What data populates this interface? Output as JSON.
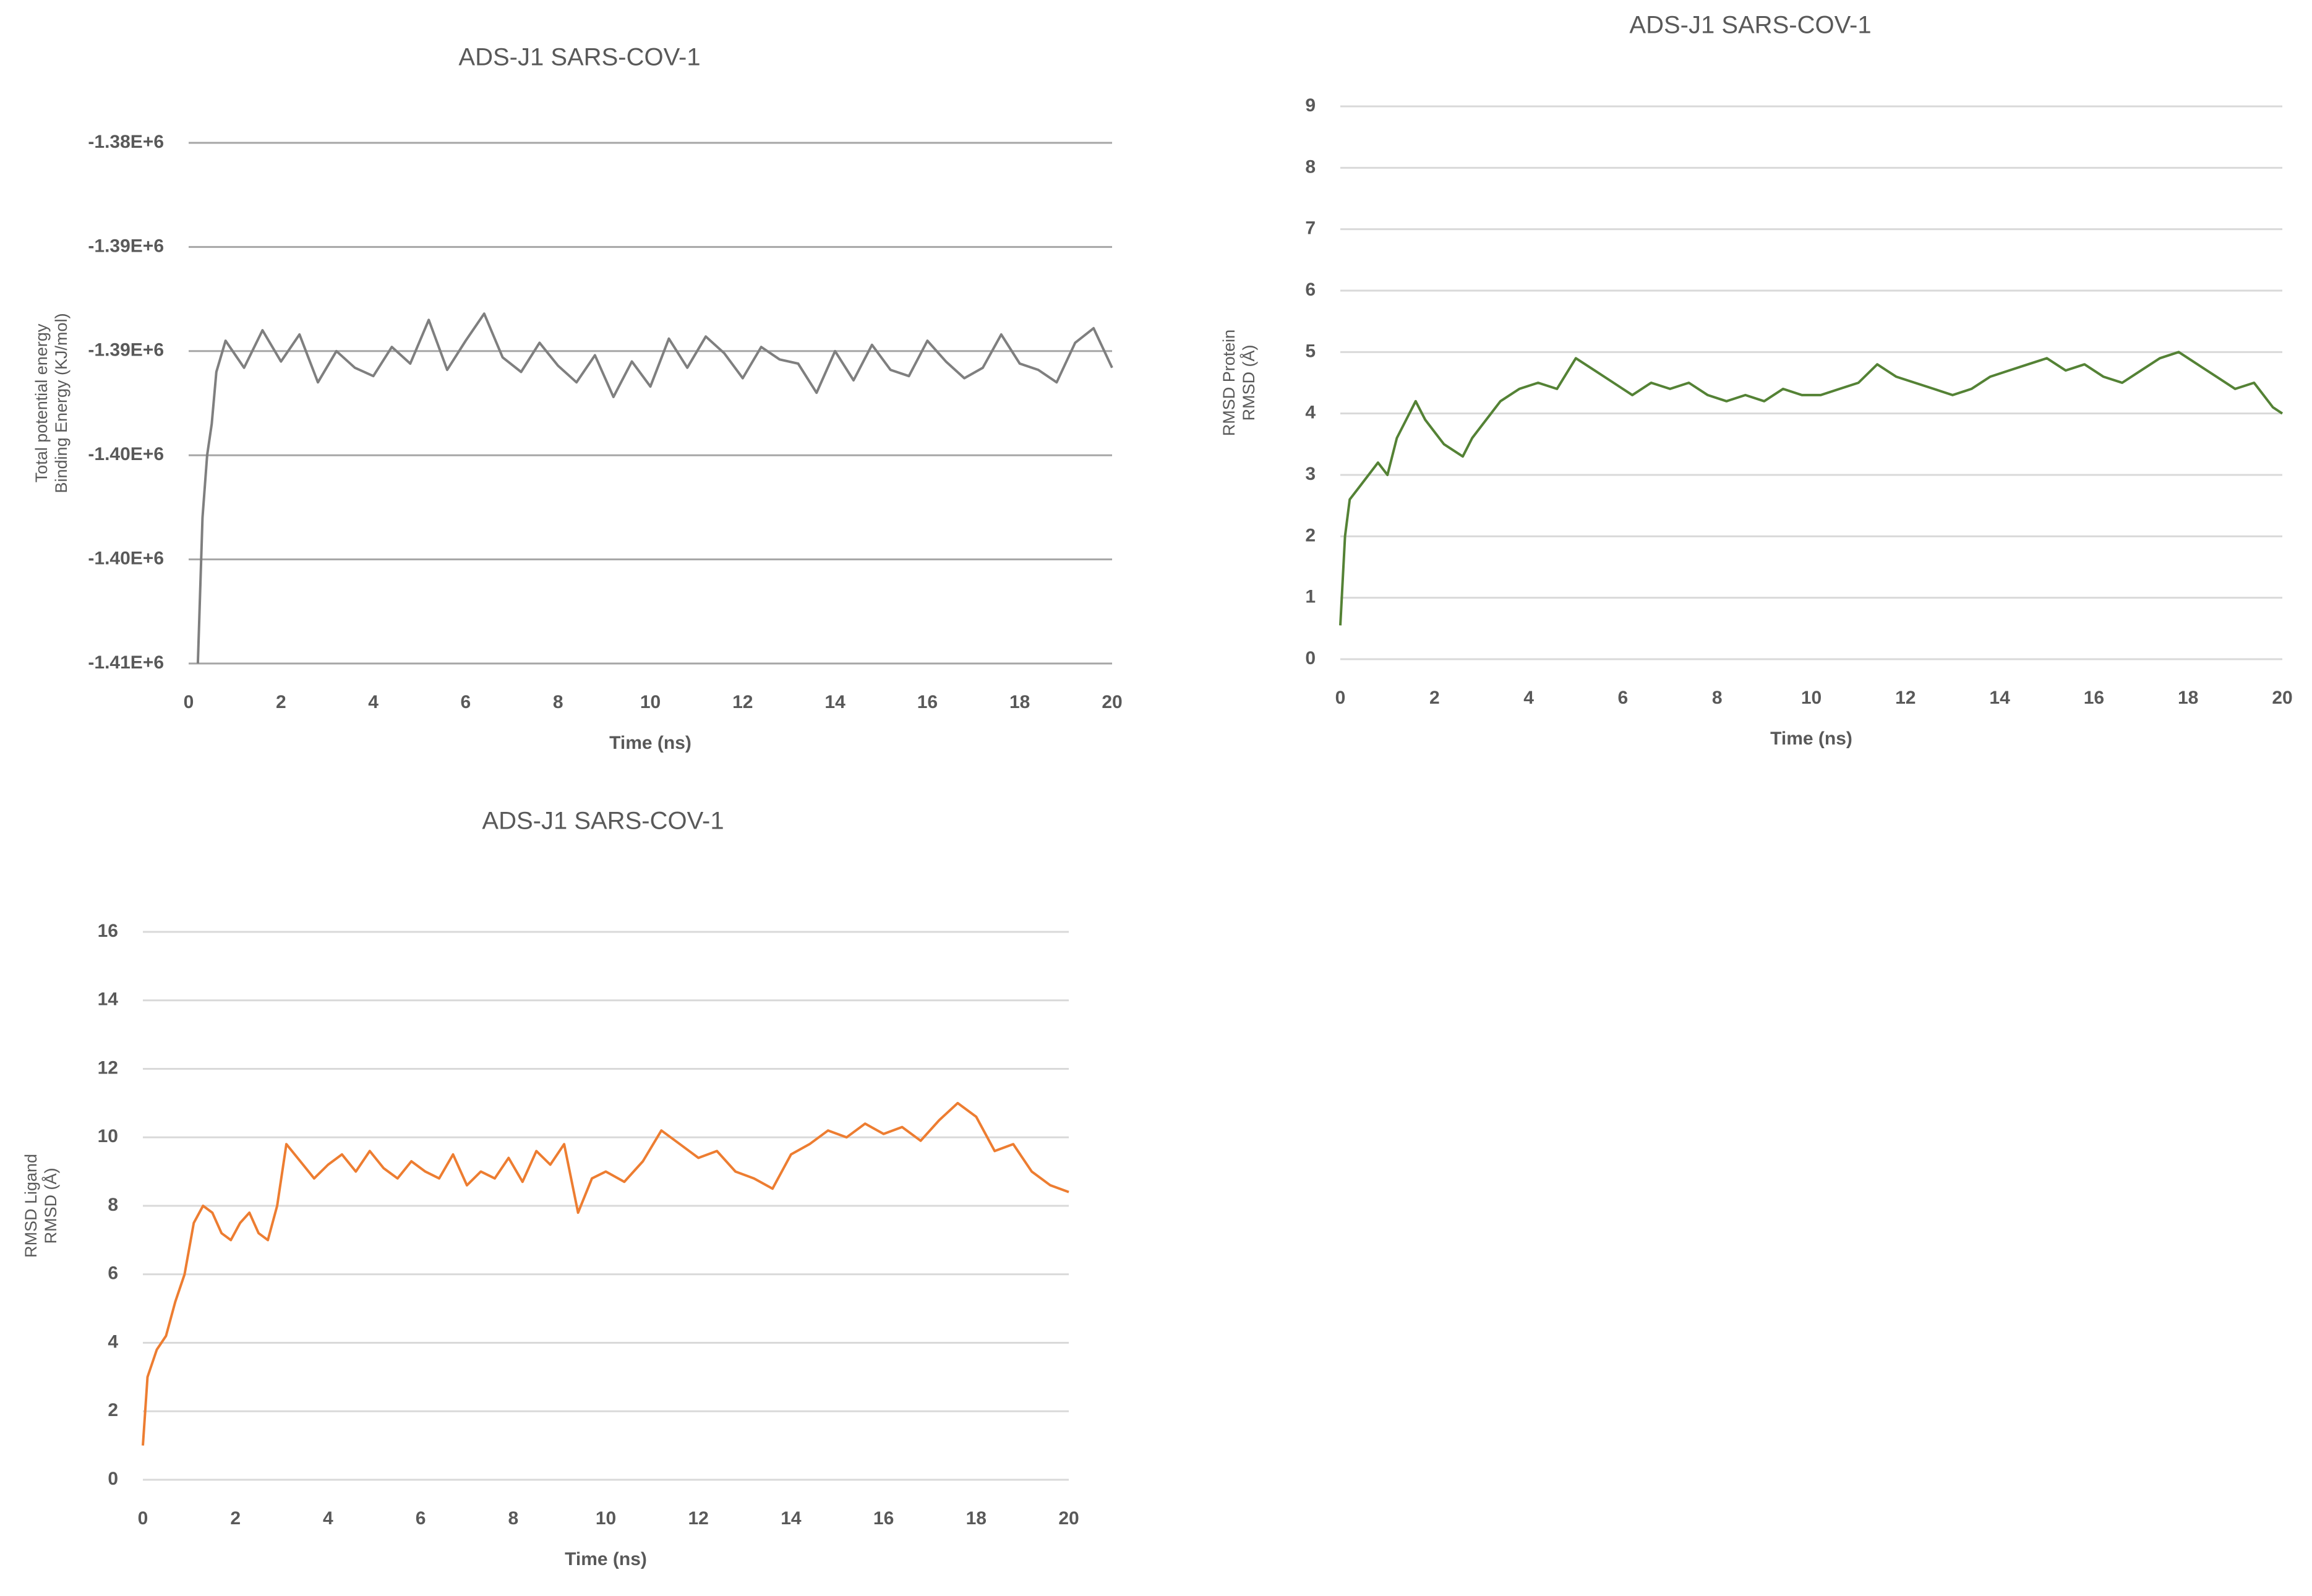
{
  "chart_data": [
    {
      "type": "line",
      "title": "ADS-J1 SARS-COV-1",
      "x_label": "Time (ns)",
      "y_label": [
        "Total potential energy",
        "Binding Energy (KJ/mol)"
      ],
      "xlim": [
        0,
        20
      ],
      "xticks": [
        0,
        2,
        4,
        6,
        8,
        10,
        12,
        14,
        16,
        18,
        20
      ],
      "ylim": [
        -1405000,
        -1380000
      ],
      "yticks": [
        {
          "value": -1380000,
          "label": "-1.38E+6"
        },
        {
          "value": -1385000,
          "label": "-1.39E+6"
        },
        {
          "value": -1390000,
          "label": "-1.39E+6"
        },
        {
          "value": -1395000,
          "label": "-1.40E+6"
        },
        {
          "value": -1400000,
          "label": "-1.40E+6"
        },
        {
          "value": -1405000,
          "label": "-1.41E+6"
        }
      ],
      "grid": true,
      "series": [
        {
          "color": "#7f7f7f",
          "x": [
            0.2,
            0.3,
            0.4,
            0.5,
            0.6,
            0.8,
            1.2,
            1.6,
            2.0,
            2.4,
            2.8,
            3.2,
            3.6,
            4.0,
            4.4,
            4.8,
            5.2,
            5.6,
            6.0,
            6.4,
            6.8,
            7.2,
            7.6,
            8.0,
            8.4,
            8.8,
            9.2,
            9.6,
            10.0,
            10.4,
            10.8,
            11.2,
            11.6,
            12.0,
            12.4,
            12.8,
            13.2,
            13.6,
            14.0,
            14.4,
            14.8,
            15.2,
            15.6,
            16.0,
            16.4,
            16.8,
            17.2,
            17.6,
            18.0,
            18.4,
            18.8,
            19.2,
            19.6,
            20.0
          ],
          "values": [
            -1405000,
            -1398000,
            -1395000,
            -1393500,
            -1391000,
            -1389500,
            -1390800,
            -1389000,
            -1390500,
            -1389200,
            -1391500,
            -1390000,
            -1390800,
            -1391200,
            -1389800,
            -1390600,
            -1388500,
            -1390900,
            -1389500,
            -1388200,
            -1390300,
            -1391000,
            -1389600,
            -1390700,
            -1391500,
            -1390200,
            -1392200,
            -1390500,
            -1391700,
            -1389400,
            -1390800,
            -1389300,
            -1390100,
            -1391300,
            -1389800,
            -1390400,
            -1390600,
            -1392000,
            -1390000,
            -1391400,
            -1389700,
            -1390900,
            -1391200,
            -1389500,
            -1390500,
            -1391300,
            -1390800,
            -1389200,
            -1390600,
            -1390900,
            -1391500,
            -1389600,
            -1388900,
            -1390800
          ]
        }
      ]
    },
    {
      "type": "line",
      "title": "ADS-J1 SARS-COV-1",
      "x_label": "Time (ns)",
      "y_label": [
        "RMSD Protein",
        "RMSD (Å)"
      ],
      "xlim": [
        0,
        20
      ],
      "xticks": [
        0,
        2,
        4,
        6,
        8,
        10,
        12,
        14,
        16,
        18,
        20
      ],
      "ylim": [
        0,
        9
      ],
      "yticks": [
        0,
        1,
        2,
        3,
        4,
        5,
        6,
        7,
        8,
        9
      ],
      "grid": true,
      "series": [
        {
          "color": "#548235",
          "x": [
            0,
            0.1,
            0.2,
            0.4,
            0.6,
            0.8,
            1.0,
            1.2,
            1.4,
            1.6,
            1.8,
            2.0,
            2.2,
            2.4,
            2.6,
            2.8,
            3.0,
            3.4,
            3.8,
            4.2,
            4.6,
            5.0,
            5.4,
            5.8,
            6.2,
            6.6,
            7.0,
            7.4,
            7.8,
            8.2,
            8.6,
            9.0,
            9.4,
            9.8,
            10.2,
            10.6,
            11.0,
            11.4,
            11.8,
            12.2,
            12.6,
            13.0,
            13.4,
            13.8,
            14.2,
            14.6,
            15.0,
            15.4,
            15.8,
            16.2,
            16.6,
            17.0,
            17.4,
            17.8,
            18.2,
            18.6,
            19.0,
            19.4,
            19.8,
            20.0
          ],
          "values": [
            0.55,
            2.0,
            2.6,
            2.8,
            3.0,
            3.2,
            3.0,
            3.6,
            3.9,
            4.2,
            3.9,
            3.7,
            3.5,
            3.4,
            3.3,
            3.6,
            3.8,
            4.2,
            4.4,
            4.5,
            4.4,
            4.9,
            4.7,
            4.5,
            4.3,
            4.5,
            4.4,
            4.5,
            4.3,
            4.2,
            4.3,
            4.2,
            4.4,
            4.3,
            4.3,
            4.4,
            4.5,
            4.8,
            4.6,
            4.5,
            4.4,
            4.3,
            4.4,
            4.6,
            4.7,
            4.8,
            4.9,
            4.7,
            4.8,
            4.6,
            4.5,
            4.7,
            4.9,
            5.0,
            4.8,
            4.6,
            4.4,
            4.5,
            4.1,
            4.0
          ]
        }
      ]
    },
    {
      "type": "line",
      "title": "ADS-J1 SARS-COV-1",
      "x_label": "Time (ns)",
      "y_label": [
        "RMSD Ligand",
        "RMSD (Å)"
      ],
      "xlim": [
        0,
        20
      ],
      "xticks": [
        0,
        2,
        4,
        6,
        8,
        10,
        12,
        14,
        16,
        18,
        20
      ],
      "ylim": [
        0,
        16
      ],
      "yticks": [
        0,
        2,
        4,
        6,
        8,
        10,
        12,
        14,
        16
      ],
      "grid": true,
      "series": [
        {
          "color": "#ed7d31",
          "x": [
            0,
            0.1,
            0.3,
            0.5,
            0.7,
            0.9,
            1.1,
            1.3,
            1.5,
            1.7,
            1.9,
            2.1,
            2.3,
            2.5,
            2.7,
            2.9,
            3.1,
            3.4,
            3.7,
            4.0,
            4.3,
            4.6,
            4.9,
            5.2,
            5.5,
            5.8,
            6.1,
            6.4,
            6.7,
            7.0,
            7.3,
            7.6,
            7.9,
            8.2,
            8.5,
            8.8,
            9.1,
            9.4,
            9.7,
            10.0,
            10.4,
            10.8,
            11.2,
            11.6,
            12.0,
            12.4,
            12.8,
            13.2,
            13.6,
            14.0,
            14.4,
            14.8,
            15.2,
            15.6,
            16.0,
            16.4,
            16.8,
            17.2,
            17.6,
            18.0,
            18.4,
            18.8,
            19.2,
            19.6,
            20.0
          ],
          "values": [
            1.0,
            3.0,
            3.8,
            4.2,
            5.2,
            6.0,
            7.5,
            8.0,
            7.8,
            7.2,
            7.0,
            7.5,
            7.8,
            7.2,
            7.0,
            8.0,
            9.8,
            9.3,
            8.8,
            9.2,
            9.5,
            9.0,
            9.6,
            9.1,
            8.8,
            9.3,
            9.0,
            8.8,
            9.5,
            8.6,
            9.0,
            8.8,
            9.4,
            8.7,
            9.6,
            9.2,
            9.8,
            7.8,
            8.8,
            9.0,
            8.7,
            9.3,
            10.2,
            9.8,
            9.4,
            9.6,
            9.0,
            8.8,
            8.5,
            9.5,
            9.8,
            10.2,
            10.0,
            10.4,
            10.1,
            10.3,
            9.9,
            10.5,
            11.0,
            10.6,
            9.6,
            9.8,
            9.0,
            8.6,
            8.4
          ]
        }
      ]
    }
  ]
}
